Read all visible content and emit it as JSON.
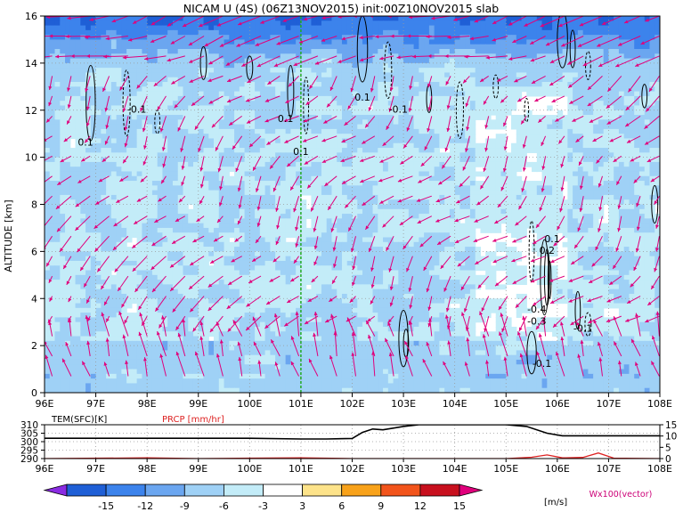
{
  "title": "NICAM U (4S) (06Z13NOV2015) init:00Z10NOV2015 slab",
  "chart_data": [
    {
      "type": "heatmap",
      "name": "zonal-wind-section",
      "variable": "U",
      "ylabel": "ALTITUDE [km]",
      "xlim": [
        96,
        108
      ],
      "ylim": [
        0,
        16
      ],
      "x_ticks": [
        "96E",
        "97E",
        "98E",
        "99E",
        "100E",
        "101E",
        "102E",
        "103E",
        "104E",
        "105E",
        "106E",
        "107E",
        "108E"
      ],
      "y_ticks": [
        "0",
        "2",
        "4",
        "6",
        "8",
        "10",
        "12",
        "14",
        "16"
      ],
      "grid": true,
      "marker_line_lon": 101,
      "marker_line_color": "#22aa22",
      "overlay_contour_labels": [
        {
          "text": "0.1",
          "lon": 96.8,
          "alt": 10.5
        },
        {
          "text": "-0.1",
          "lon": 97.8,
          "alt": 11.9
        },
        {
          "text": "0.1",
          "lon": 100.7,
          "alt": 11.5
        },
        {
          "text": "0.1",
          "lon": 101.0,
          "alt": 10.1
        },
        {
          "text": "0.1",
          "lon": 102.2,
          "alt": 12.4
        },
        {
          "text": "-0.1",
          "lon": 102.9,
          "alt": 11.9
        },
        {
          "text": "0.1",
          "lon": 105.9,
          "alt": 6.4
        },
        {
          "text": "0.2",
          "lon": 105.8,
          "alt": 5.9
        },
        {
          "text": "-0.4",
          "lon": 105.6,
          "alt": 3.4
        },
        {
          "text": "-0.3",
          "lon": 105.6,
          "alt": 2.9
        },
        {
          "text": "-0.1",
          "lon": 106.5,
          "alt": 2.6
        },
        {
          "text": "-0.1",
          "lon": 105.7,
          "alt": 1.1
        }
      ],
      "vector_legend": "Wx100(vector)"
    },
    {
      "type": "line",
      "name": "surface-panel",
      "xlim": [
        96,
        108
      ],
      "x_ticks": [
        "96E",
        "97E",
        "98E",
        "99E",
        "100E",
        "101E",
        "102E",
        "103E",
        "104E",
        "105E",
        "106E",
        "107E",
        "108E"
      ],
      "left_ticks": [
        "290",
        "295",
        "300",
        "305",
        "310"
      ],
      "right_ticks": [
        "0",
        "5",
        "10",
        "15"
      ],
      "left_ylim": [
        290,
        310
      ],
      "right_ylim": [
        0,
        15
      ],
      "series": [
        {
          "name": "TEM(SFC)[K]",
          "color": "#000000",
          "x": [
            96,
            97,
            98,
            99,
            100,
            101,
            101.5,
            102,
            102.2,
            102.4,
            102.6,
            102.8,
            103.0,
            103.3,
            104,
            105,
            105.4,
            105.8,
            106.1,
            106.5,
            107,
            108
          ],
          "y": [
            302,
            302,
            302,
            302,
            302,
            301.6,
            301.6,
            301.9,
            305.5,
            307.5,
            307,
            308,
            309,
            310,
            310,
            310,
            309,
            305,
            303.5,
            303.5,
            303.5,
            303.5
          ]
        },
        {
          "name": "PRCP [mm/hr]",
          "color": "#dd2222",
          "x": [
            96,
            98,
            99,
            100,
            101,
            102,
            103,
            104,
            105,
            105.5,
            105.8,
            106.1,
            106.5,
            106.8,
            107.1,
            108
          ],
          "y": [
            0,
            0.3,
            0,
            0.2,
            0.3,
            0,
            0,
            0,
            0,
            0.6,
            1.6,
            0.3,
            0.5,
            2.5,
            0.2,
            0
          ]
        }
      ]
    }
  ],
  "colorbar": {
    "ticks": [
      "-15",
      "-12",
      "-9",
      "-6",
      "-3",
      "3",
      "6",
      "9",
      "12",
      "15"
    ],
    "units": "[m/s]",
    "colors": [
      "#8a2be2",
      "#1f5fd6",
      "#3c83ec",
      "#6ba6f0",
      "#9fd1f6",
      "#c3ecf8",
      "#ffffff",
      "#fde38a",
      "#f8a21a",
      "#f2541b",
      "#c8101e",
      "#e0007c"
    ]
  }
}
